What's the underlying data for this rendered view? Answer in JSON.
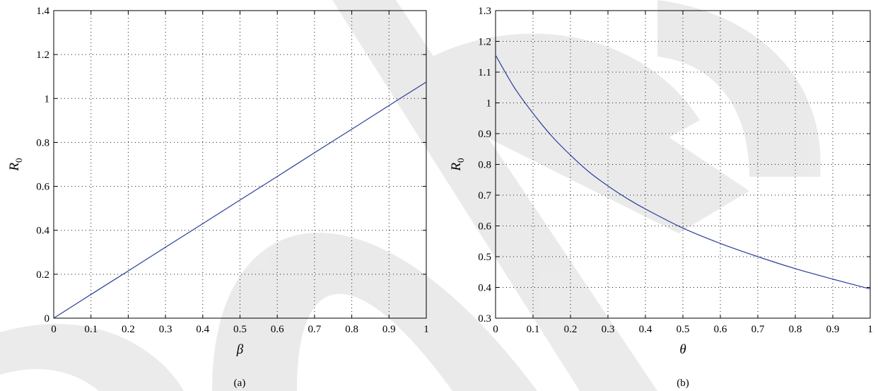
{
  "chart_data": [
    {
      "type": "line",
      "caption": "(a)",
      "xlabel": "β",
      "ylabel": {
        "base": "R",
        "sub": "0"
      },
      "xlim": [
        0,
        1
      ],
      "ylim": [
        0,
        1.4
      ],
      "xticks": [
        "0",
        "0.1",
        "0.2",
        "0.3",
        "0.4",
        "0.5",
        "0.6",
        "0.7",
        "0.8",
        "0.9",
        "1"
      ],
      "yticks": [
        "0",
        "0.2",
        "0.4",
        "0.6",
        "0.8",
        "1",
        "1.2",
        "1.4"
      ],
      "grid": true,
      "series": [
        {
          "color": "#2a3f9a",
          "x": [
            0,
            0.1,
            0.2,
            0.3,
            0.4,
            0.5,
            0.6,
            0.7,
            0.8,
            0.9,
            1
          ],
          "y": [
            0,
            0.108,
            0.215,
            0.323,
            0.43,
            0.538,
            0.645,
            0.753,
            0.86,
            0.968,
            1.075
          ]
        }
      ]
    },
    {
      "type": "line",
      "caption": "(b)",
      "xlabel": "θ",
      "ylabel": {
        "base": "R",
        "sub": "0"
      },
      "xlim": [
        0,
        1
      ],
      "ylim": [
        0.3,
        1.3
      ],
      "xticks": [
        "0",
        "0.1",
        "0.2",
        "0.3",
        "0.4",
        "0.5",
        "0.6",
        "0.7",
        "0.8",
        "0.9",
        "1"
      ],
      "yticks": [
        "0.3",
        "0.4",
        "0.5",
        "0.6",
        "0.7",
        "0.8",
        "0.9",
        "1",
        "1.1",
        "1.2",
        "1.3"
      ],
      "grid": true,
      "series": [
        {
          "color": "#2a3f9a",
          "x": [
            0,
            0.05,
            0.1,
            0.15,
            0.2,
            0.25,
            0.3,
            0.35,
            0.4,
            0.5,
            0.6,
            0.7,
            0.8,
            0.9,
            1
          ],
          "y": [
            1.155,
            1.05,
            0.966,
            0.892,
            0.83,
            0.775,
            0.73,
            0.69,
            0.655,
            0.593,
            0.543,
            0.5,
            0.461,
            0.427,
            0.395
          ]
        }
      ]
    }
  ]
}
